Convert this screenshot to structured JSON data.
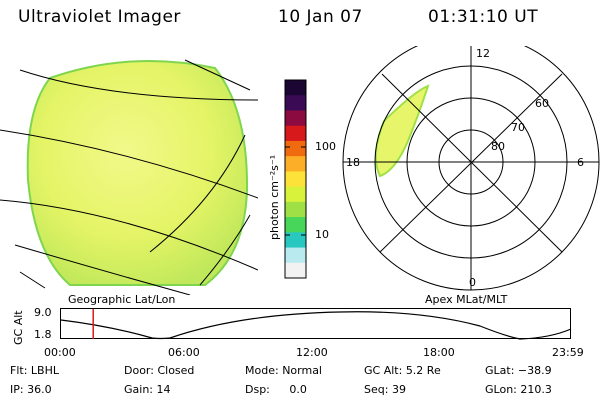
{
  "header": {
    "instrument": "Ultraviolet Imager",
    "date": "10 Jan 07",
    "time": "01:31:10 UT"
  },
  "left_panel": {
    "caption": "Geographic Lat/Lon"
  },
  "right_panel": {
    "caption": "Apex MLat/MLT",
    "mlt_labels": [
      "12",
      "18",
      "6",
      "0"
    ],
    "mlat_labels": [
      "60",
      "70",
      "80"
    ]
  },
  "colorbar": {
    "label": "photon cm⁻²s⁻¹",
    "ticks": [
      "100",
      "10"
    ],
    "scale": "log",
    "colors": [
      "#1a0533",
      "#3a0a55",
      "#8b0a40",
      "#d7191c",
      "#f06b10",
      "#fdae28",
      "#fde23a",
      "#d8f23c",
      "#9fe046",
      "#48d65a",
      "#28c7c0",
      "#b8eaef",
      "#f2f2f2"
    ]
  },
  "altitude_plot": {
    "ylabel": "GC Alt",
    "yticks": [
      "9.0",
      "1.8"
    ],
    "xticks": [
      "00:00",
      "06:00",
      "12:00",
      "18:00",
      "23:59"
    ],
    "marker_time": "01:31"
  },
  "info": {
    "flt_label": "Flt:",
    "flt_value": "LBHL",
    "ip_label": "IP:",
    "ip_value": "36.0",
    "door_label": "Door:",
    "door_value": "Closed",
    "gain_label": "Gain:",
    "gain_value": "14",
    "mode_label": "Mode:",
    "mode_value": "Normal",
    "dsp_label": "Dsp:",
    "dsp_value": "0.0",
    "gcalt_label": "GC Alt:",
    "gcalt_value": "5.2 Re",
    "seq_label": "Seq:",
    "seq_value": "39",
    "glat_label": "GLat:",
    "glat_value": "−38.9",
    "glon_label": "GLon:",
    "glon_value": "210.3"
  },
  "style": {
    "image_fill": "#e6f56a",
    "image_edge": "#9fe046",
    "marker_color": "#d7191c"
  }
}
